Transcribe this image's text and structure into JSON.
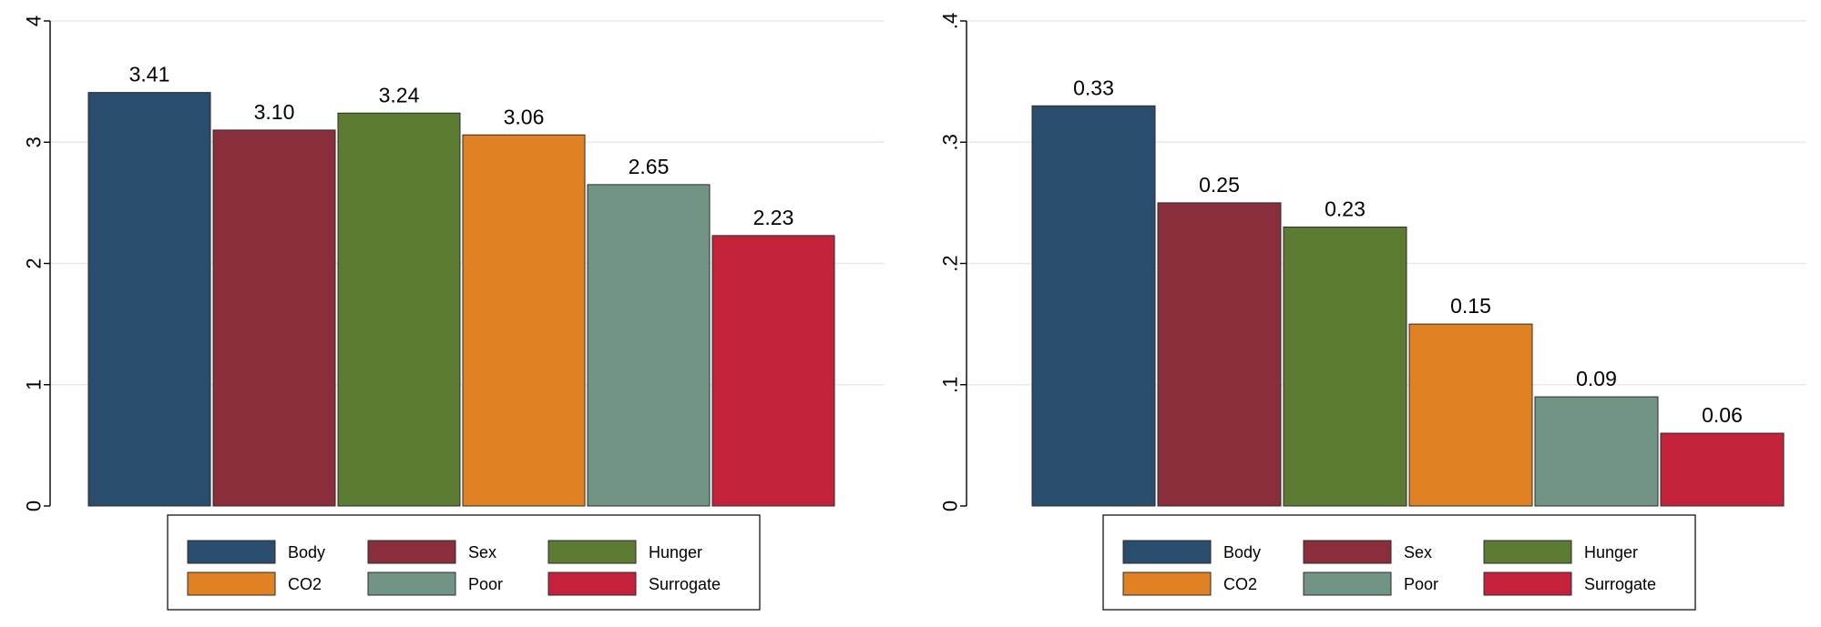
{
  "chart_data": [
    {
      "type": "bar",
      "title": "",
      "xlabel": "",
      "ylabel": "",
      "ylim": [
        0,
        4
      ],
      "yticks": [
        0,
        1,
        2,
        3,
        4
      ],
      "ytick_labels": [
        "0",
        "1",
        "2",
        "3",
        "4"
      ],
      "grid": true,
      "legend_position": "bottom",
      "series": [
        {
          "name": "Body",
          "color": "#2a4d6e",
          "value": 3.41,
          "label": "3.41"
        },
        {
          "name": "Sex",
          "color": "#8b2e3b",
          "value": 3.1,
          "label": "3.10"
        },
        {
          "name": "Hunger",
          "color": "#5a7b31",
          "value": 3.24,
          "label": "3.24"
        },
        {
          "name": "CO2",
          "color": "#e08123",
          "value": 3.06,
          "label": "3.06"
        },
        {
          "name": "Poor",
          "color": "#729485",
          "value": 2.65,
          "label": "2.65"
        },
        {
          "name": "Surrogate",
          "color": "#c4213a",
          "value": 2.23,
          "label": "2.23"
        }
      ]
    },
    {
      "type": "bar",
      "title": "",
      "xlabel": "",
      "ylabel": "",
      "ylim": [
        0,
        0.4
      ],
      "yticks": [
        0,
        0.1,
        0.2,
        0.3,
        0.4
      ],
      "ytick_labels": [
        "0",
        ".1",
        ".2",
        ".3",
        ".4"
      ],
      "grid": true,
      "legend_position": "bottom",
      "series": [
        {
          "name": "Body",
          "color": "#2a4d6e",
          "value": 0.33,
          "label": "0.33"
        },
        {
          "name": "Sex",
          "color": "#8b2e3b",
          "value": 0.25,
          "label": "0.25"
        },
        {
          "name": "Hunger",
          "color": "#5a7b31",
          "value": 0.23,
          "label": "0.23"
        },
        {
          "name": "CO2",
          "color": "#e08123",
          "value": 0.15,
          "label": "0.15"
        },
        {
          "name": "Poor",
          "color": "#729485",
          "value": 0.09,
          "label": "0.09"
        },
        {
          "name": "Surrogate",
          "color": "#c4213a",
          "value": 0.06,
          "label": "0.06"
        }
      ]
    }
  ]
}
